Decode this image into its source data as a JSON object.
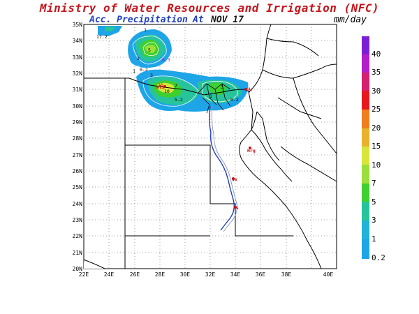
{
  "header": {
    "title": "Ministry of Water Resources and Irrigation (NFC)",
    "product": "Acc. Precipitation",
    "at_label": "At",
    "date": "NOV 17",
    "units": "mm/day"
  },
  "map": {
    "lat_labels": [
      "35N",
      "34N",
      "33N",
      "32N",
      "31N",
      "30N",
      "29N",
      "28N",
      "27N",
      "26N",
      "25N",
      "24N",
      "23N",
      "22N",
      "21N",
      "20N"
    ],
    "lon_labels": [
      "22E",
      "24E",
      "26E",
      "28E",
      "30E",
      "32E",
      "34E",
      "36E",
      "38E",
      "40E"
    ],
    "contour_labels": [
      "17.2",
      "1",
      "5",
      "3",
      "1",
      "0.2",
      "0.3",
      "10",
      "10",
      "3",
      "7",
      "5.2",
      "3",
      "1",
      "0.2"
    ],
    "city_labels": [
      "Alx",
      "Ar",
      "Hrg",
      "Qe",
      "As"
    ]
  },
  "colorbar": {
    "levels": [
      "40",
      "35",
      "30",
      "25",
      "20",
      "15",
      "10",
      "7",
      "5",
      "3",
      "1",
      "0.2"
    ],
    "colors": [
      "#7b1fd6",
      "#b21fc8",
      "#d61f6e",
      "#e8191c",
      "#f07d1e",
      "#e8b12e",
      "#d8e53a",
      "#9bdf3a",
      "#3fcf2e",
      "#27c39a",
      "#1fb4d8",
      "#1ea5e8"
    ]
  }
}
